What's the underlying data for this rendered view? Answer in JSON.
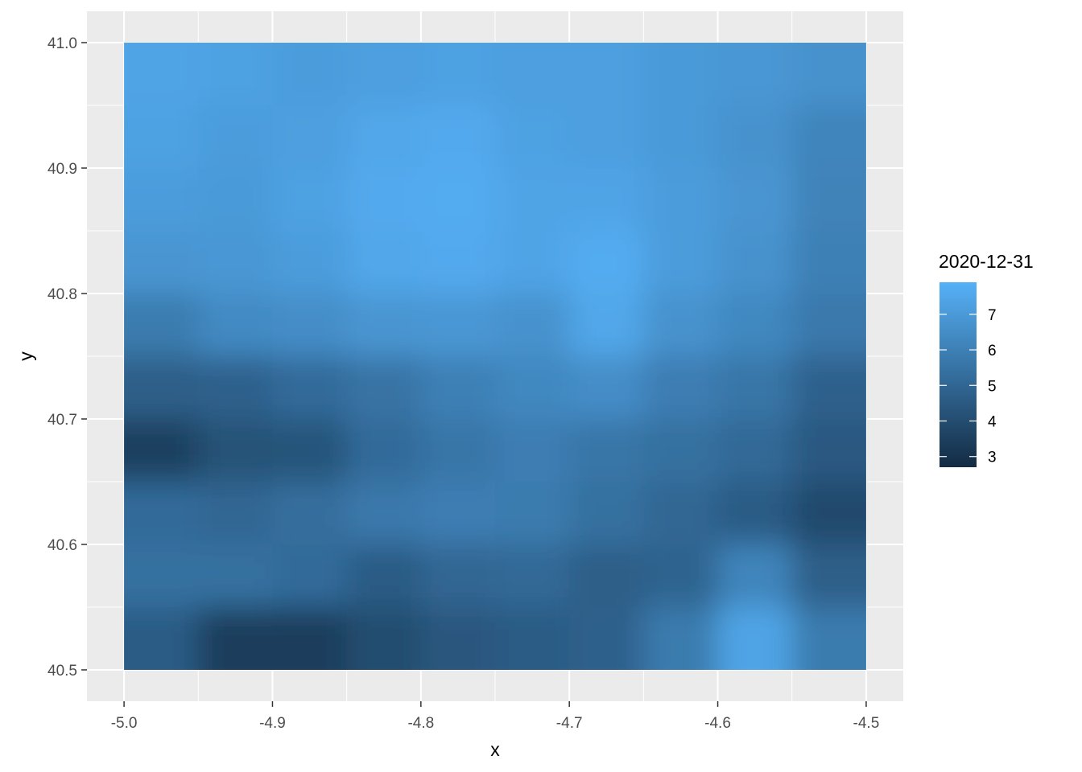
{
  "chart_data": {
    "type": "heatmap",
    "title": "",
    "xlabel": "x",
    "ylabel": "y",
    "x_ticks": [
      "-5.0",
      "-4.9",
      "-4.8",
      "-4.7",
      "-4.6",
      "-4.5"
    ],
    "y_ticks": [
      "40.5",
      "40.6",
      "40.7",
      "40.8",
      "40.9",
      "41.0"
    ],
    "xlim": [
      -5.0,
      -4.5
    ],
    "ylim": [
      40.5,
      41.0
    ],
    "grid": true,
    "legend": {
      "title": "2020-12-31",
      "placement": "right",
      "labels": [
        "3",
        "4",
        "5",
        "6",
        "7"
      ],
      "range": [
        2.7,
        7.9
      ],
      "low_color": "#132B43",
      "high_color": "#56B1F7"
    },
    "x": [
      -4.975,
      -4.925,
      -4.875,
      -4.825,
      -4.775,
      -4.725,
      -4.675,
      -4.625,
      -4.575,
      -4.525
    ],
    "y": [
      40.975,
      40.925,
      40.875,
      40.825,
      40.775,
      40.725,
      40.675,
      40.625,
      40.575,
      40.525
    ],
    "z": [
      [
        7.4,
        7.3,
        7.1,
        7.2,
        7.3,
        7.2,
        7.2,
        7.0,
        6.9,
        6.7
      ],
      [
        7.3,
        7.1,
        7.2,
        7.5,
        7.6,
        7.3,
        7.2,
        7.0,
        6.7,
        6.2
      ],
      [
        7.1,
        7.0,
        7.3,
        7.6,
        7.7,
        7.4,
        7.4,
        7.1,
        6.8,
        6.1
      ],
      [
        6.8,
        6.9,
        7.1,
        7.5,
        7.6,
        7.4,
        7.7,
        7.1,
        6.7,
        6.0
      ],
      [
        5.8,
        6.4,
        6.5,
        6.8,
        6.9,
        6.7,
        7.5,
        6.7,
        6.3,
        5.7
      ],
      [
        4.7,
        4.8,
        5.2,
        5.5,
        6.0,
        6.3,
        6.5,
        5.9,
        5.6,
        4.8
      ],
      [
        3.5,
        4.2,
        4.3,
        5.2,
        5.6,
        5.9,
        5.6,
        5.4,
        5.1,
        4.5
      ],
      [
        5.2,
        5.0,
        5.3,
        5.7,
        5.9,
        5.8,
        5.4,
        5.0,
        4.6,
        3.9
      ],
      [
        5.4,
        5.4,
        5.2,
        4.6,
        5.0,
        5.1,
        4.7,
        4.9,
        6.2,
        4.7
      ],
      [
        4.6,
        3.4,
        3.4,
        4.0,
        4.4,
        4.6,
        4.8,
        5.8,
        7.4,
        5.8
      ]
    ]
  }
}
